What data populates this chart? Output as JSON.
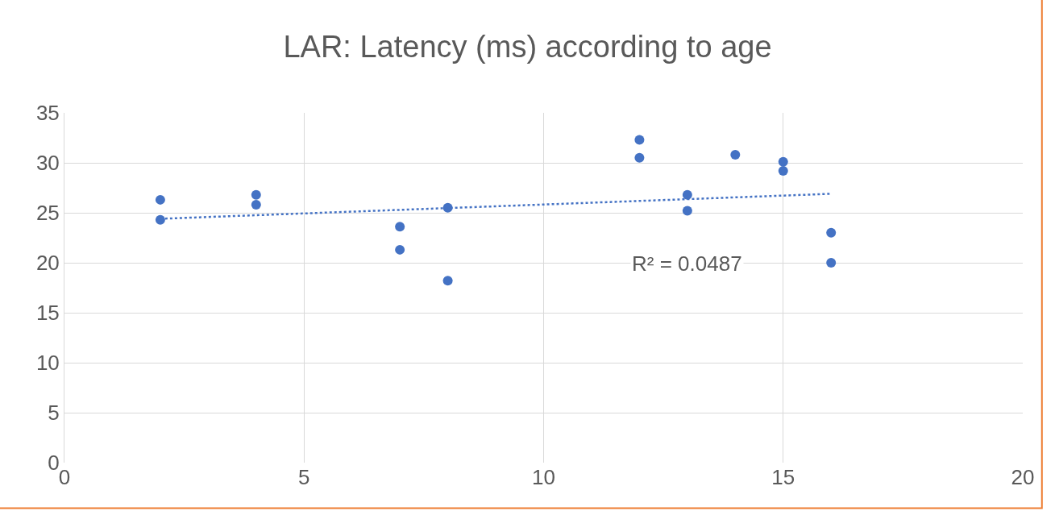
{
  "chart_data": {
    "type": "scatter",
    "title": "LAR: Latency (ms) according to age",
    "x": [
      2,
      2,
      4,
      4,
      7,
      7,
      8,
      8,
      12,
      12,
      13,
      13,
      14,
      15,
      15,
      16,
      16
    ],
    "series": [
      {
        "color": "#4472c4",
        "values": [
          26.3,
          24.3,
          26.8,
          25.8,
          23.6,
          21.3,
          25.5,
          18.2,
          32.3,
          30.5,
          26.8,
          25.2,
          30.8,
          30.1,
          29.2,
          23.0,
          20.0
        ],
        "marker": "circle"
      },
      {
        "type": "line",
        "x": [
          2,
          16
        ],
        "values": [
          24.4,
          26.9
        ],
        "color": "#4472c4",
        "line_style": "dotted",
        "marker": "none"
      }
    ],
    "annotations": [
      "R² = 0.0487"
    ],
    "xlim": [
      0,
      20
    ],
    "xticks": [
      0,
      5,
      10,
      15,
      20
    ],
    "ylim": [
      0,
      35
    ],
    "yticks": [
      0,
      5,
      10,
      15,
      20,
      25,
      30,
      35
    ],
    "grid": true
  }
}
